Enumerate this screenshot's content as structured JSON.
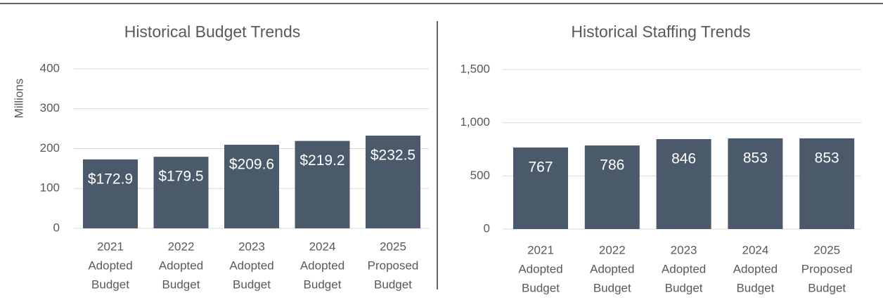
{
  "chart_data": [
    {
      "type": "bar",
      "title": "Historical Budget Trends",
      "y_label": "Millions",
      "categories": [
        [
          "2021",
          "Adopted",
          "Budget"
        ],
        [
          "2022",
          "Adopted",
          "Budget"
        ],
        [
          "2023",
          "Adopted",
          "Budget"
        ],
        [
          "2024",
          "Adopted",
          "Budget"
        ],
        [
          "2025",
          "Proposed",
          "Budget"
        ]
      ],
      "values": [
        172.9,
        179.5,
        209.6,
        219.2,
        232.5
      ],
      "value_labels": [
        "$172.9",
        "$179.5",
        "$209.6",
        "$219.2",
        "$232.5"
      ],
      "color": "#4a5a6a",
      "ylim": [
        0,
        400
      ],
      "yticks": [
        0,
        100,
        200,
        300,
        400
      ],
      "grid": true
    },
    {
      "type": "bar",
      "title": "Historical Staffing Trends",
      "categories": [
        [
          "2021",
          "Adopted",
          "Budget"
        ],
        [
          "2022",
          "Adopted",
          "Budget"
        ],
        [
          "2023",
          "Adopted",
          "Budget"
        ],
        [
          "2024",
          "Adopted",
          "Budget"
        ],
        [
          "2025",
          "Proposed",
          "Budget"
        ]
      ],
      "values": [
        767,
        786,
        846,
        853,
        853
      ],
      "color": "#4a5a6a",
      "ylim": [
        0,
        1500
      ],
      "yticks": [
        0,
        500,
        {
          "value": 1000,
          "label": "1,000"
        },
        {
          "value": 1500,
          "label": "1,500"
        }
      ],
      "grid": true
    }
  ]
}
